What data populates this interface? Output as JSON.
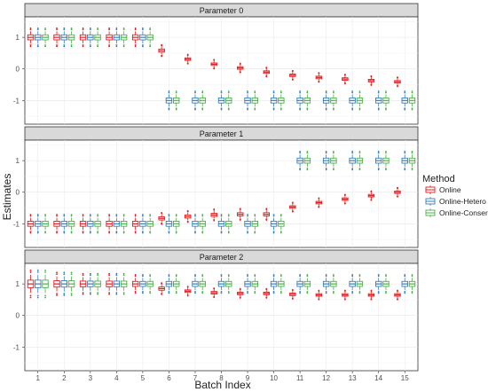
{
  "chart_data": {
    "type": "boxplot",
    "ylabel": "Estimates",
    "xlabel": "Batch Index",
    "x_ticks": [
      "1",
      "2",
      "3",
      "4",
      "5",
      "6",
      "7",
      "8",
      "9",
      "10",
      "11",
      "12",
      "13",
      "14",
      "15"
    ],
    "y_ticks": [
      "1",
      "0",
      "-1"
    ],
    "ylim": [
      -1.75,
      1.65
    ],
    "legend": {
      "title": "Method",
      "position": "right",
      "entries": [
        "Online",
        "Online-Hetero",
        "Online-Conser"
      ]
    },
    "colors": {
      "Online": "#e41a1c",
      "Online-Hetero": "#377eb8",
      "Online-Conser": "#4daf4a"
    },
    "facets": [
      {
        "title": "Parameter 0",
        "series": [
          {
            "name": "Online",
            "medians": [
              1.0,
              1.0,
              1.0,
              1.0,
              1.0,
              0.58,
              0.31,
              0.15,
              0.03,
              -0.1,
              -0.2,
              -0.27,
              -0.32,
              -0.37,
              -0.41
            ],
            "spread": [
              0.08,
              0.08,
              0.08,
              0.08,
              0.08,
              0.05,
              0.04,
              0.04,
              0.04,
              0.04,
              0.04,
              0.04,
              0.04,
              0.04,
              0.04
            ]
          },
          {
            "name": "Online-Hetero",
            "medians": [
              1.0,
              1.0,
              1.0,
              1.0,
              1.0,
              -1.0,
              -1.0,
              -1.0,
              -1.0,
              -1.0,
              -1.0,
              -1.0,
              -1.0,
              -1.0,
              -1.0
            ],
            "spread": [
              0.08,
              0.08,
              0.08,
              0.08,
              0.08,
              0.08,
              0.08,
              0.08,
              0.08,
              0.08,
              0.08,
              0.08,
              0.08,
              0.08,
              0.08
            ]
          },
          {
            "name": "Online-Conser",
            "medians": [
              1.0,
              1.0,
              1.0,
              1.0,
              1.0,
              -1.0,
              -1.0,
              -1.0,
              -1.0,
              -1.0,
              -1.0,
              -1.0,
              -1.0,
              -1.0,
              -1.0
            ],
            "spread": [
              0.08,
              0.08,
              0.08,
              0.08,
              0.08,
              0.08,
              0.08,
              0.08,
              0.08,
              0.08,
              0.08,
              0.08,
              0.08,
              0.08,
              0.08
            ]
          }
        ]
      },
      {
        "title": "Parameter 1",
        "series": [
          {
            "name": "Online",
            "medians": [
              -1.0,
              -1.0,
              -1.0,
              -1.0,
              -1.0,
              -0.83,
              -0.77,
              -0.72,
              -0.7,
              -0.7,
              -0.47,
              -0.33,
              -0.22,
              -0.11,
              0.0
            ],
            "spread": [
              0.08,
              0.08,
              0.08,
              0.08,
              0.08,
              0.05,
              0.05,
              0.05,
              0.05,
              0.05,
              0.04,
              0.04,
              0.04,
              0.04,
              0.04
            ]
          },
          {
            "name": "Online-Hetero",
            "medians": [
              -1.0,
              -1.0,
              -1.0,
              -1.0,
              -1.0,
              -1.0,
              -1.0,
              -1.0,
              -1.0,
              -1.0,
              1.0,
              1.0,
              1.0,
              1.0,
              1.0
            ],
            "spread": [
              0.08,
              0.08,
              0.08,
              0.08,
              0.08,
              0.08,
              0.08,
              0.08,
              0.08,
              0.08,
              0.08,
              0.08,
              0.08,
              0.08,
              0.08
            ]
          },
          {
            "name": "Online-Conser",
            "medians": [
              -1.0,
              -1.0,
              -1.0,
              -1.0,
              -1.0,
              -1.0,
              -1.0,
              -1.0,
              -1.0,
              -1.0,
              1.0,
              1.0,
              1.0,
              1.0,
              1.0
            ],
            "spread": [
              0.08,
              0.08,
              0.08,
              0.08,
              0.08,
              0.08,
              0.08,
              0.08,
              0.08,
              0.08,
              0.08,
              0.08,
              0.08,
              0.08,
              0.08
            ]
          }
        ]
      },
      {
        "title": "Parameter 2",
        "series": [
          {
            "name": "Online",
            "medians": [
              1.0,
              1.0,
              1.0,
              1.0,
              1.0,
              0.85,
              0.77,
              0.72,
              0.7,
              0.7,
              0.67,
              0.65,
              0.65,
              0.65,
              0.65
            ],
            "spread": [
              0.12,
              0.1,
              0.09,
              0.09,
              0.08,
              0.05,
              0.04,
              0.04,
              0.04,
              0.04,
              0.04,
              0.04,
              0.04,
              0.04,
              0.04
            ]
          },
          {
            "name": "Online-Hetero",
            "medians": [
              1.0,
              1.0,
              1.0,
              1.0,
              1.0,
              1.0,
              1.0,
              1.0,
              1.0,
              1.0,
              1.0,
              1.0,
              1.0,
              1.0,
              1.0
            ],
            "spread": [
              0.12,
              0.1,
              0.09,
              0.09,
              0.08,
              0.08,
              0.08,
              0.08,
              0.08,
              0.08,
              0.08,
              0.08,
              0.08,
              0.08,
              0.08
            ]
          },
          {
            "name": "Online-Conser",
            "medians": [
              1.0,
              1.0,
              1.0,
              1.0,
              1.0,
              1.0,
              1.0,
              1.0,
              1.0,
              1.0,
              1.0,
              1.0,
              1.0,
              1.0,
              1.0
            ],
            "spread": [
              0.12,
              0.1,
              0.09,
              0.09,
              0.08,
              0.08,
              0.08,
              0.08,
              0.08,
              0.08,
              0.08,
              0.08,
              0.08,
              0.08,
              0.08
            ]
          }
        ]
      }
    ]
  }
}
